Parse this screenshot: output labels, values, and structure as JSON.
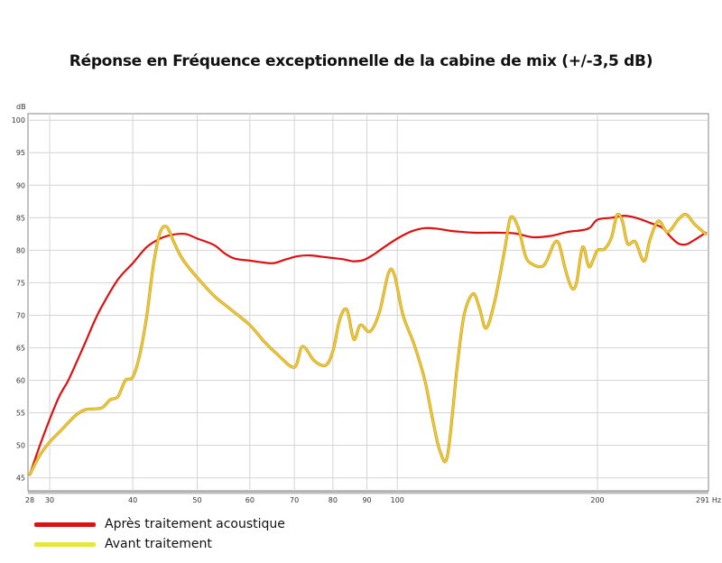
{
  "chart_data": {
    "type": "line",
    "title": "Réponse en Fréquence exceptionnelle de la cabine de mix (+/-3,5 dB)",
    "ylabel": "dB",
    "xlabel": "",
    "x_unit": "Hz",
    "x_scale": "log",
    "xlim": [
      28,
      291
    ],
    "ylim": [
      43,
      101
    ],
    "grid": true,
    "legend_position": "bottom-left",
    "x_ticks": [
      {
        "value": 28,
        "label": "28"
      },
      {
        "value": 30,
        "label": "30"
      },
      {
        "value": 40,
        "label": "40"
      },
      {
        "value": 50,
        "label": "50"
      },
      {
        "value": 60,
        "label": "60"
      },
      {
        "value": 70,
        "label": "70"
      },
      {
        "value": 80,
        "label": "80"
      },
      {
        "value": 90,
        "label": "90"
      },
      {
        "value": 100,
        "label": "100"
      },
      {
        "value": 200,
        "label": "200"
      },
      {
        "value": 291,
        "label": "291 Hz"
      }
    ],
    "y_ticks": [
      {
        "value": 45,
        "label": "45"
      },
      {
        "value": 50,
        "label": "50"
      },
      {
        "value": 55,
        "label": "55"
      },
      {
        "value": 60,
        "label": "60"
      },
      {
        "value": 65,
        "label": "65"
      },
      {
        "value": 70,
        "label": "70"
      },
      {
        "value": 75,
        "label": "75"
      },
      {
        "value": 80,
        "label": "80"
      },
      {
        "value": 85,
        "label": "85"
      },
      {
        "value": 90,
        "label": "90"
      },
      {
        "value": 95,
        "label": "95"
      },
      {
        "value": 100,
        "label": "100"
      }
    ],
    "series": [
      {
        "name": "Après traitement acoustique",
        "color": "#dd1111",
        "points": [
          [
            28,
            45.5
          ],
          [
            29,
            50
          ],
          [
            30,
            54
          ],
          [
            31,
            57.5
          ],
          [
            32,
            60
          ],
          [
            33,
            63
          ],
          [
            34,
            66
          ],
          [
            35,
            69
          ],
          [
            36,
            71.5
          ],
          [
            38,
            75.5
          ],
          [
            40,
            78
          ],
          [
            42,
            80.5
          ],
          [
            44,
            81.8
          ],
          [
            46,
            82.4
          ],
          [
            48,
            82.5
          ],
          [
            50,
            81.8
          ],
          [
            53,
            80.8
          ],
          [
            55,
            79.5
          ],
          [
            57,
            78.7
          ],
          [
            60,
            78.4
          ],
          [
            62,
            78.2
          ],
          [
            65,
            78
          ],
          [
            68,
            78.6
          ],
          [
            71,
            79.1
          ],
          [
            74,
            79.2
          ],
          [
            77,
            79
          ],
          [
            80,
            78.8
          ],
          [
            83,
            78.6
          ],
          [
            86,
            78.3
          ],
          [
            89,
            78.5
          ],
          [
            92,
            79.3
          ],
          [
            95,
            80.3
          ],
          [
            100,
            81.8
          ],
          [
            105,
            82.9
          ],
          [
            110,
            83.4
          ],
          [
            115,
            83.3
          ],
          [
            120,
            83
          ],
          [
            130,
            82.7
          ],
          [
            140,
            82.7
          ],
          [
            150,
            82.6
          ],
          [
            160,
            82
          ],
          [
            170,
            82.2
          ],
          [
            180,
            82.8
          ],
          [
            190,
            83.1
          ],
          [
            195,
            83.5
          ],
          [
            200,
            84.7
          ],
          [
            210,
            85
          ],
          [
            220,
            85.3
          ],
          [
            230,
            84.9
          ],
          [
            240,
            84.2
          ],
          [
            250,
            83.5
          ],
          [
            258,
            82
          ],
          [
            265,
            81
          ],
          [
            272,
            80.9
          ],
          [
            280,
            81.6
          ],
          [
            291,
            82.7
          ]
        ]
      },
      {
        "name": "Avant traitement",
        "color": "#e7d43a",
        "points": [
          [
            28,
            45.5
          ],
          [
            29,
            48.5
          ],
          [
            30,
            50.5
          ],
          [
            31,
            52
          ],
          [
            32,
            53.5
          ],
          [
            33,
            54.8
          ],
          [
            34,
            55.5
          ],
          [
            35,
            55.6
          ],
          [
            36,
            55.8
          ],
          [
            37,
            57
          ],
          [
            38,
            57.5
          ],
          [
            39,
            60
          ],
          [
            40,
            60.5
          ],
          [
            41,
            64
          ],
          [
            42,
            70
          ],
          [
            43,
            78
          ],
          [
            44,
            82.8
          ],
          [
            45,
            83.6
          ],
          [
            46,
            81.5
          ],
          [
            47,
            79.5
          ],
          [
            48,
            78
          ],
          [
            50,
            75.8
          ],
          [
            53,
            73
          ],
          [
            56,
            71
          ],
          [
            60,
            68.5
          ],
          [
            63,
            66
          ],
          [
            66,
            64
          ],
          [
            70,
            62
          ],
          [
            72,
            65.2
          ],
          [
            75,
            63
          ],
          [
            78,
            62.3
          ],
          [
            80,
            64.5
          ],
          [
            82,
            69.5
          ],
          [
            84,
            70.8
          ],
          [
            86,
            66.3
          ],
          [
            88,
            68.5
          ],
          [
            91,
            67.5
          ],
          [
            94,
            70.5
          ],
          [
            97,
            76.5
          ],
          [
            99,
            76.2
          ],
          [
            102,
            70
          ],
          [
            106,
            65.5
          ],
          [
            110,
            60
          ],
          [
            113,
            54
          ],
          [
            116,
            49
          ],
          [
            119,
            48.5
          ],
          [
            123,
            62
          ],
          [
            126,
            70
          ],
          [
            130,
            73.3
          ],
          [
            133,
            71
          ],
          [
            136,
            68
          ],
          [
            140,
            72
          ],
          [
            145,
            80
          ],
          [
            148,
            85
          ],
          [
            152,
            83.5
          ],
          [
            156,
            79
          ],
          [
            160,
            77.8
          ],
          [
            165,
            77.5
          ],
          [
            168,
            78.5
          ],
          [
            172,
            81
          ],
          [
            175,
            81
          ],
          [
            179,
            77
          ],
          [
            183,
            74.2
          ],
          [
            186,
            75
          ],
          [
            190,
            80.5
          ],
          [
            194,
            77.5
          ],
          [
            197,
            78.5
          ],
          [
            200,
            80
          ],
          [
            205,
            80.2
          ],
          [
            210,
            82
          ],
          [
            214,
            85.4
          ],
          [
            218,
            84.5
          ],
          [
            222,
            81
          ],
          [
            228,
            81.3
          ],
          [
            235,
            78.3
          ],
          [
            240,
            81.7
          ],
          [
            247,
            84.5
          ],
          [
            255,
            82.8
          ],
          [
            265,
            84.8
          ],
          [
            272,
            85.5
          ],
          [
            280,
            84
          ],
          [
            291,
            82.5
          ]
        ]
      }
    ]
  }
}
